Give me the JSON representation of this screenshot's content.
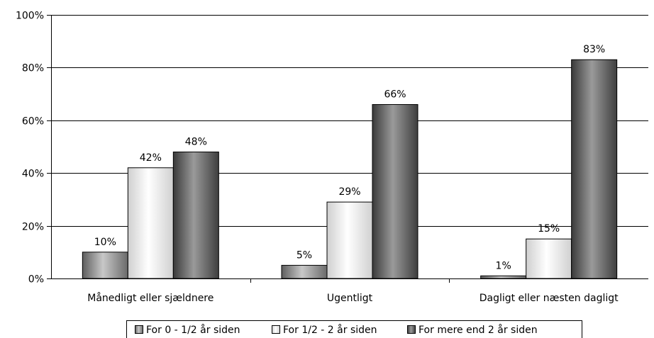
{
  "chart_data": {
    "type": "bar",
    "title": "",
    "xlabel": "",
    "ylabel": "",
    "ylim": [
      0,
      100
    ],
    "y_ticks": [
      "0%",
      "20%",
      "40%",
      "60%",
      "80%",
      "100%"
    ],
    "y_tick_values": [
      0,
      20,
      40,
      60,
      80,
      100
    ],
    "grid": true,
    "legend_position": "bottom",
    "categories": [
      "Månedligt eller sjældnere",
      "Ugentligt",
      "Dagligt eller næsten dagligt"
    ],
    "series": [
      {
        "name": "For 0 - 1/2 år siden",
        "values": [
          10,
          5,
          1
        ],
        "labels": [
          "10%",
          "5%",
          "1%"
        ],
        "color": "#8c8c8c"
      },
      {
        "name": "For 1/2 - 2 år siden",
        "values": [
          42,
          29,
          15
        ],
        "labels": [
          "42%",
          "29%",
          "15%"
        ],
        "color": "#f2f2f2"
      },
      {
        "name": "For mere end 2 år siden",
        "values": [
          48,
          66,
          83
        ],
        "labels": [
          "48%",
          "66%",
          "83%"
        ],
        "color": "#595959"
      }
    ]
  }
}
